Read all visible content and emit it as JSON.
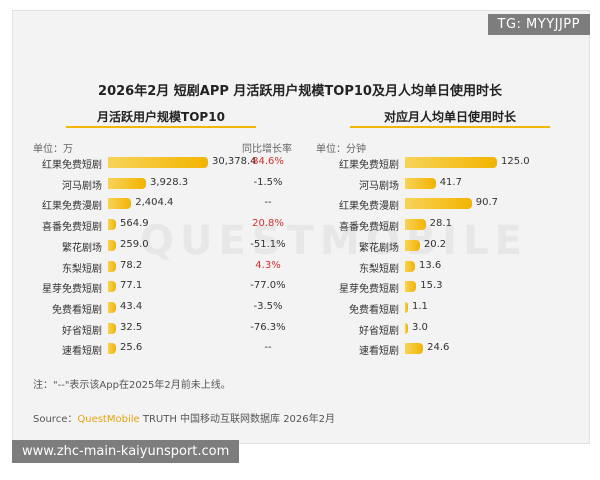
{
  "tag": "TG: MYYJJPP",
  "url": "www.zhc-main-kaiyunsport.com",
  "title": "2026年2月 短剧APP 月活跃用户规模TOP10及月人均单日使用时长",
  "watermark": "QUESTMOBILE",
  "note": "注：\"--\"表示该App在2025年2月前未上线。",
  "source": {
    "prefix": "Source：",
    "brand": "QuestMobile",
    "suffix": " TRUTH 中国移动互联网数据库 2026年2月"
  },
  "colors": {
    "bar": "#f3b400",
    "positive_growth": "#d0312d",
    "neutral": "#333333"
  },
  "chart_data": [
    {
      "type": "bar",
      "title": "月活跃用户规模TOP10",
      "unit_label": "单位：万",
      "growth_header": "同比增长率",
      "categories": [
        "红果免费短剧",
        "河马剧场",
        "红果免费漫剧",
        "喜番免费短剧",
        "繁花剧场",
        "东梨短剧",
        "星芽免费短剧",
        "免费看短剧",
        "好省短剧",
        "速看短剧"
      ],
      "values": [
        30378.4,
        3928.3,
        2404.4,
        564.9,
        259.0,
        78.2,
        77.1,
        43.4,
        32.5,
        25.6
      ],
      "value_labels": [
        "30,378.4",
        "3,928.3",
        "2,404.4",
        "564.9",
        "259.0",
        "78.2",
        "77.1",
        "43.4",
        "32.5",
        "25.6"
      ],
      "growth": [
        "84.6%",
        "-1.5%",
        "--",
        "20.8%",
        "-51.1%",
        "4.3%",
        "-77.0%",
        "-3.5%",
        "-76.3%",
        "--"
      ],
      "growth_positive": [
        true,
        false,
        false,
        true,
        false,
        true,
        false,
        false,
        false,
        false
      ]
    },
    {
      "type": "bar",
      "title": "对应月人均单日使用时长",
      "unit_label": "单位：分钟",
      "categories": [
        "红果免费短剧",
        "河马剧场",
        "红果免费漫剧",
        "喜番免费短剧",
        "繁花剧场",
        "东梨短剧",
        "星芽免费短剧",
        "免费看短剧",
        "好省短剧",
        "速看短剧"
      ],
      "values": [
        125.0,
        41.7,
        90.7,
        28.1,
        20.2,
        13.6,
        15.3,
        1.1,
        3.0,
        24.6
      ],
      "value_labels": [
        "125.0",
        "41.7",
        "90.7",
        "28.1",
        "20.2",
        "13.6",
        "15.3",
        "1.1",
        "3.0",
        "24.6"
      ]
    }
  ]
}
